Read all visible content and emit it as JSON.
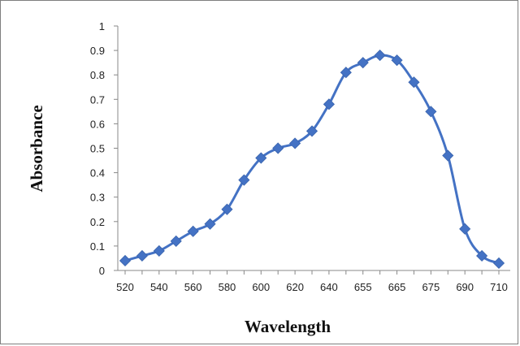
{
  "chart_data": {
    "type": "line",
    "title": "",
    "xlabel": "Wavelength",
    "ylabel": "Absorbance",
    "x": [
      "520",
      "530",
      "540",
      "550",
      "560",
      "570",
      "580",
      "590",
      "600",
      "610",
      "620",
      "630",
      "640",
      "650",
      "655",
      "660",
      "665",
      "670",
      "675",
      "680",
      "690",
      "700",
      "710"
    ],
    "x_tick_labels": [
      "520",
      "540",
      "560",
      "580",
      "600",
      "620",
      "640",
      "655",
      "665",
      "675",
      "690",
      "710"
    ],
    "y_tick_labels": [
      "0",
      "0.1",
      "0.2",
      "0.3",
      "0.4",
      "0.5",
      "0.6",
      "0.7",
      "0.8",
      "0.9",
      "1"
    ],
    "series": [
      {
        "values": [
          0.04,
          0.06,
          0.08,
          0.12,
          0.16,
          0.19,
          0.25,
          0.37,
          0.46,
          0.5,
          0.52,
          0.57,
          0.68,
          0.81,
          0.85,
          0.88,
          0.86,
          0.77,
          0.65,
          0.47,
          0.17,
          0.06,
          0.03
        ],
        "color": "#4472c4",
        "marker": "diamond"
      }
    ],
    "ylim": [
      0,
      1
    ],
    "grid": false,
    "legend": "none",
    "x_axis_note": "categorical points, evenly spaced"
  }
}
